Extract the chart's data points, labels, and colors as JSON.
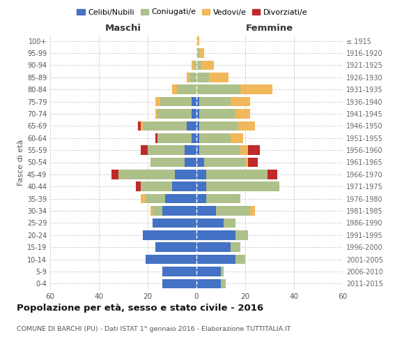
{
  "age_groups": [
    "0-4",
    "5-9",
    "10-14",
    "15-19",
    "20-24",
    "25-29",
    "30-34",
    "35-39",
    "40-44",
    "45-49",
    "50-54",
    "55-59",
    "60-64",
    "65-69",
    "70-74",
    "75-79",
    "80-84",
    "85-89",
    "90-94",
    "95-99",
    "100+"
  ],
  "birth_years": [
    "2011-2015",
    "2006-2010",
    "2001-2005",
    "1996-2000",
    "1991-1995",
    "1986-1990",
    "1981-1985",
    "1976-1980",
    "1971-1975",
    "1966-1970",
    "1961-1965",
    "1956-1960",
    "1951-1955",
    "1946-1950",
    "1941-1945",
    "1936-1940",
    "1931-1935",
    "1926-1930",
    "1921-1925",
    "1916-1920",
    "≤ 1915"
  ],
  "colors": {
    "celibi": "#4472c4",
    "coniugati": "#aec08a",
    "vedovi": "#f0b85a",
    "divorziati": "#c0292a"
  },
  "males": {
    "celibi": [
      14,
      14,
      21,
      17,
      22,
      18,
      14,
      13,
      10,
      9,
      5,
      5,
      2,
      4,
      2,
      2,
      0,
      0,
      0,
      0,
      0
    ],
    "coniugati": [
      0,
      0,
      0,
      0,
      0,
      0,
      4,
      8,
      13,
      23,
      14,
      15,
      14,
      18,
      14,
      13,
      8,
      3,
      1,
      0,
      0
    ],
    "vedovi": [
      0,
      0,
      0,
      0,
      0,
      0,
      1,
      2,
      0,
      0,
      0,
      0,
      0,
      1,
      1,
      2,
      2,
      1,
      1,
      0,
      0
    ],
    "divorziati": [
      0,
      0,
      0,
      0,
      0,
      0,
      0,
      0,
      2,
      3,
      0,
      3,
      1,
      1,
      0,
      0,
      0,
      0,
      0,
      0,
      0
    ]
  },
  "females": {
    "nubili": [
      10,
      10,
      16,
      14,
      16,
      11,
      8,
      4,
      4,
      4,
      3,
      1,
      1,
      1,
      1,
      1,
      0,
      0,
      0,
      0,
      0
    ],
    "coniugate": [
      2,
      1,
      4,
      4,
      5,
      5,
      14,
      14,
      30,
      25,
      17,
      17,
      13,
      16,
      15,
      13,
      18,
      5,
      2,
      1,
      0
    ],
    "vedove": [
      0,
      0,
      0,
      0,
      0,
      0,
      2,
      0,
      0,
      0,
      1,
      3,
      5,
      7,
      6,
      8,
      13,
      8,
      5,
      2,
      1
    ],
    "divorziate": [
      0,
      0,
      0,
      0,
      0,
      0,
      0,
      0,
      0,
      4,
      4,
      5,
      0,
      0,
      0,
      0,
      0,
      0,
      0,
      0,
      0
    ]
  },
  "title": "Popolazione per età, sesso e stato civile - 2016",
  "subtitle": "COMUNE DI BARCHI (PU) - Dati ISTAT 1° gennaio 2016 - Elaborazione TUTTITALIA.IT",
  "xlabel_left": "Maschi",
  "xlabel_right": "Femmine",
  "ylabel_left": "Fasce di età",
  "xlim": 60,
  "legend_labels": [
    "Celibi/Nubili",
    "Coniugati/e",
    "Vedovi/e",
    "Divorziati/e"
  ],
  "background_color": "#ffffff",
  "grid_color": "#cccccc"
}
